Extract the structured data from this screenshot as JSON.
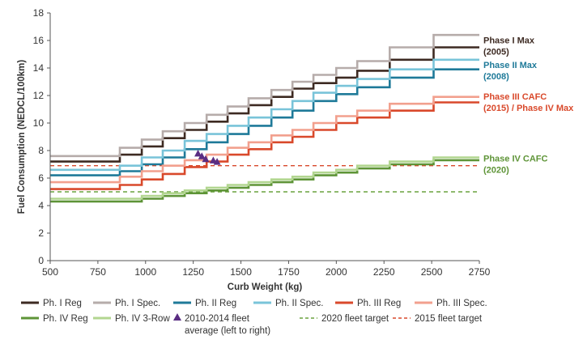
{
  "chart_data": {
    "type": "line",
    "xlabel": "Curb Weight (kg)",
    "ylabel": "Fuel Consumption (NEDCL/100km)",
    "xlim": [
      500,
      2750
    ],
    "ylim": [
      0,
      18
    ],
    "x_ticks": [
      "500",
      "750",
      "1000",
      "1250",
      "1500",
      "1750",
      "2000",
      "2250",
      "2500",
      "2750"
    ],
    "y_ticks": [
      "0",
      "2",
      "4",
      "6",
      "8",
      "10",
      "12",
      "14",
      "16",
      "18"
    ],
    "grid": false,
    "legend_position": "bottom",
    "step_breaks": [
      500,
      865,
      980,
      1090,
      1205,
      1320,
      1430,
      1540,
      1660,
      1770,
      1880,
      2000,
      2110,
      2280,
      2510,
      2750
    ],
    "series": [
      {
        "name": "Ph. I Reg",
        "color": "#3d2a22",
        "dash": false,
        "values": [
          7.2,
          7.7,
          8.3,
          8.9,
          9.5,
          10.1,
          10.7,
          11.3,
          11.9,
          12.5,
          12.9,
          13.3,
          13.8,
          14.6,
          15.5
        ]
      },
      {
        "name": "Ph. I Spec.",
        "color": "#b6acaa",
        "dash": false,
        "values": [
          7.6,
          8.2,
          8.8,
          9.4,
          10.0,
          10.6,
          11.2,
          11.8,
          12.4,
          13.0,
          13.5,
          14.0,
          14.5,
          15.5,
          16.4
        ]
      },
      {
        "name": "Ph. II Reg",
        "color": "#1f7a99",
        "dash": false,
        "values": [
          6.2,
          6.5,
          7.0,
          7.5,
          8.1,
          8.6,
          9.2,
          9.8,
          10.4,
          10.9,
          11.6,
          12.1,
          12.6,
          13.3,
          13.9
        ]
      },
      {
        "name": "Ph. II Spec.",
        "color": "#79c4d9",
        "dash": false,
        "values": [
          6.6,
          6.9,
          7.5,
          8.0,
          8.7,
          9.2,
          9.8,
          10.4,
          11.0,
          11.6,
          12.2,
          12.7,
          13.2,
          13.9,
          14.6
        ]
      },
      {
        "name": "Ph. III Reg",
        "color": "#d9492b",
        "dash": false,
        "values": [
          5.2,
          5.5,
          5.9,
          6.3,
          6.8,
          7.2,
          7.7,
          8.1,
          8.6,
          9.0,
          9.5,
          10.0,
          10.4,
          10.9,
          11.5
        ]
      },
      {
        "name": "Ph. III Spec.",
        "color": "#f2a08e",
        "dash": false,
        "values": [
          5.7,
          6.1,
          6.5,
          6.9,
          7.3,
          7.7,
          8.2,
          8.6,
          9.1,
          9.5,
          10.0,
          10.5,
          10.9,
          11.4,
          11.9
        ]
      },
      {
        "name": "Ph. IV Reg",
        "color": "#5e9437",
        "dash": false,
        "values": [
          4.3,
          4.3,
          4.5,
          4.7,
          4.9,
          5.1,
          5.3,
          5.5,
          5.7,
          5.9,
          6.2,
          6.4,
          6.7,
          7.0,
          7.3
        ]
      },
      {
        "name": "Ph. IV 3-Row",
        "color": "#b2d690",
        "dash": false,
        "values": [
          4.5,
          4.5,
          4.7,
          4.9,
          5.1,
          5.3,
          5.5,
          5.7,
          5.9,
          6.1,
          6.4,
          6.6,
          6.9,
          7.2,
          7.5
        ]
      }
    ],
    "targets": [
      {
        "name": "2020 fleet target",
        "color": "#6aa23f",
        "value": 5.0
      },
      {
        "name": "2015 fleet target",
        "color": "#d9492b",
        "value": 6.9
      }
    ],
    "fleet_points": {
      "name": "2010-2014 fleet average (left to right)",
      "legend_lines": [
        "2010-2014 fleet",
        "average (left to right)"
      ],
      "color": "#5a2d82",
      "points": [
        [
          1275,
          7.8
        ],
        [
          1295,
          7.6
        ],
        [
          1315,
          7.4
        ],
        [
          1355,
          7.3
        ],
        [
          1375,
          7.2
        ]
      ]
    },
    "end_labels": [
      {
        "lines": [
          "Phase I Max",
          "(2005)"
        ],
        "color": "#3d2a22",
        "y": 15.8
      },
      {
        "lines": [
          "Phase II Max",
          "(2008)"
        ],
        "color": "#1f7a99",
        "y": 14.0
      },
      {
        "lines": [
          "Phase III CAFC",
          "(2015) / Phase IV Max"
        ],
        "color": "#d9492b",
        "y": 11.7
      },
      {
        "lines": [
          "Phase IV CAFC",
          "(2020)"
        ],
        "color": "#5e9437",
        "y": 7.2
      }
    ]
  }
}
